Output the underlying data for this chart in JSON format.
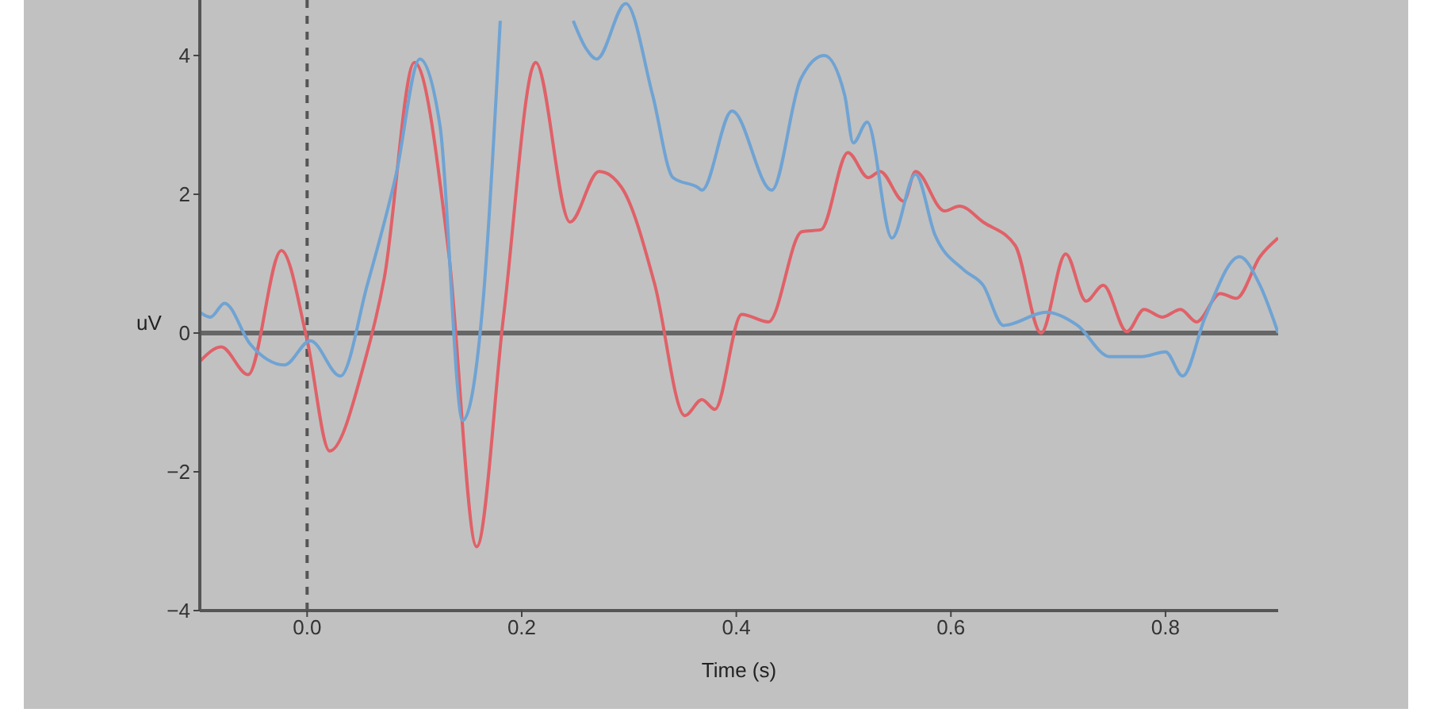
{
  "chart_data": {
    "type": "line",
    "xlabel": "Time (s)",
    "ylabel": "uV",
    "xlim": [
      -0.1,
      0.905
    ],
    "ylim": [
      -4,
      4.8
    ],
    "xticks": [
      {
        "value": 0,
        "label": "0.0"
      },
      0.2,
      0.4,
      0.6,
      0.8
    ],
    "yticks": [
      {
        "value": -4,
        "label": "−4"
      },
      {
        "value": -2,
        "label": "−2"
      },
      0,
      2,
      4
    ],
    "grid": false,
    "legend": false,
    "marker": "none",
    "line_style": "solid",
    "ref_lines": [
      {
        "axis": "x",
        "value": 0,
        "color": "#555555",
        "line_style": "dashed"
      },
      {
        "axis": "y",
        "value": 0,
        "color": "#666666",
        "line_style": "solid"
      }
    ],
    "series": [
      {
        "color": "#e06168",
        "x": [
          -0.1,
          -0.08,
          -0.055,
          -0.024,
          0,
          0.021,
          0.053,
          0.072,
          0.1,
          0.132,
          0.158,
          0.183,
          0.213,
          0.245,
          0.272,
          0.293,
          0.324,
          0.352,
          0.368,
          0.38,
          0.405,
          0.43,
          0.461,
          0.479,
          0.504,
          0.523,
          0.534,
          0.556,
          0.567,
          0.594,
          0.608,
          0.63,
          0.66,
          0.684,
          0.707,
          0.726,
          0.742,
          0.764,
          0.78,
          0.797,
          0.814,
          0.829,
          0.851,
          0.866,
          0.888,
          0.905
        ],
        "values": [
          -0.41,
          -0.2,
          -0.6,
          1.19,
          -0.1,
          -1.7,
          -0.45,
          0.8,
          3.9,
          1.15,
          -3.08,
          0.23,
          3.9,
          1.6,
          2.33,
          2.1,
          0.7,
          -1.19,
          -0.96,
          -1.1,
          0.27,
          0.16,
          1.46,
          1.49,
          2.6,
          2.24,
          2.33,
          1.9,
          2.33,
          1.76,
          1.83,
          1.6,
          1.26,
          0,
          1.14,
          0.46,
          0.69,
          0.02,
          0.34,
          0.23,
          0.34,
          0.16,
          0.57,
          0.5,
          1.1,
          1.37
        ]
      },
      {
        "color": "#6fa3d3",
        "x": [
          -0.1,
          -0.09,
          -0.077,
          -0.053,
          -0.021,
          0.003,
          0.031,
          0.056,
          0.083,
          0.105,
          0.124,
          0.145,
          0.164,
          0.18,
          0.21,
          0.248,
          0.26,
          0.27,
          0.297,
          0.322,
          0.341,
          0.364,
          0.368,
          0.396,
          0.433,
          0.46,
          0.482,
          0.501,
          0.509,
          0.522,
          0.545,
          0.567,
          0.585,
          0.612,
          0.63,
          0.649,
          0.689,
          0.718,
          0.748,
          0.778,
          0.8,
          0.816,
          0.837,
          0.869,
          0.888,
          0.905
        ],
        "values": [
          0.3,
          0.23,
          0.43,
          -0.16,
          -0.46,
          -0.11,
          -0.62,
          0.69,
          2.29,
          3.95,
          2.97,
          -1.26,
          0.46,
          4.5,
          null,
          4.5,
          4.1,
          3.95,
          4.75,
          3.43,
          2.24,
          2.1,
          2.06,
          3.2,
          2.06,
          3.66,
          4.0,
          3.43,
          2.74,
          3.04,
          1.37,
          2.29,
          1.42,
          0.91,
          0.69,
          0.11,
          0.3,
          0.11,
          -0.34,
          -0.34,
          -0.27,
          -0.62,
          0.23,
          1.1,
          0.69,
          0
        ]
      }
    ]
  }
}
